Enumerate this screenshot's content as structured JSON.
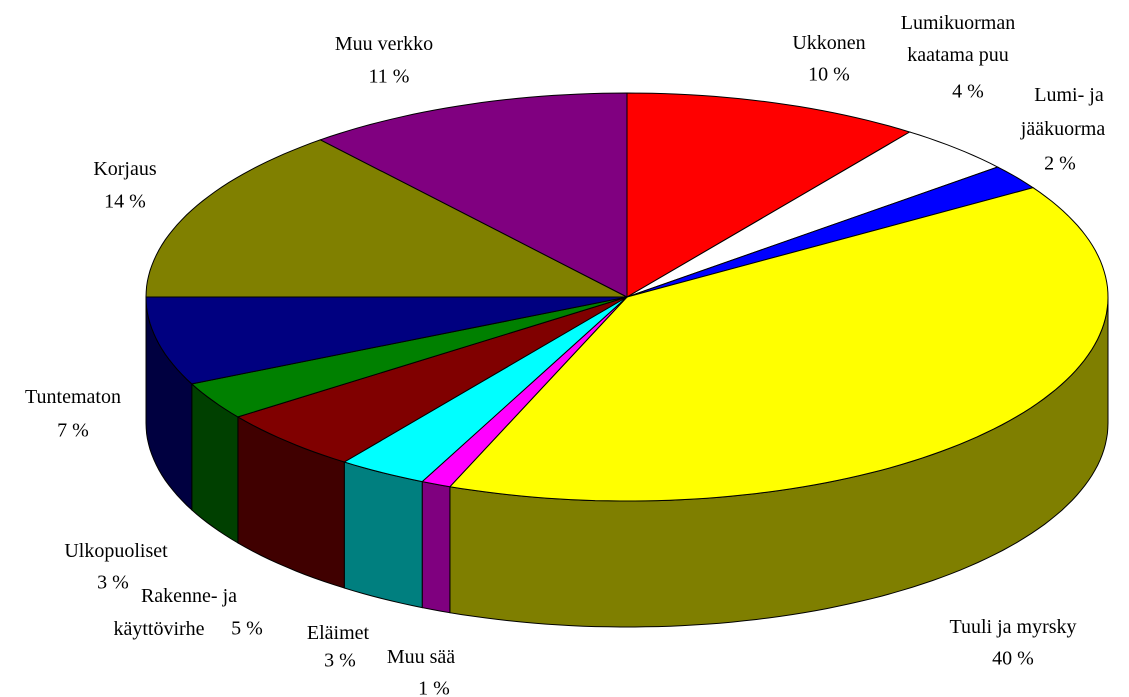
{
  "chart_data": {
    "type": "pie3d",
    "categories": [
      "Ukkonen",
      "Lumikuorman\nkaatama puu",
      "Lumi- ja\njääkuorma",
      "Tuuli ja myrsky",
      "Muu sää",
      "Eläimet",
      "Rakenne- ja\nkäyttövirhe",
      "Ulkopuoliset",
      "Tuntematon",
      "Korjaus",
      "Muu verkko"
    ],
    "values": [
      10,
      4,
      2,
      40,
      1,
      3,
      5,
      3,
      7,
      14,
      11
    ],
    "value_labels": [
      "10 %",
      "4 %",
      "2 %",
      "40 %",
      "1 %",
      "3 %",
      "5 %",
      "3 %",
      "7 %",
      "14 %",
      "11 %"
    ],
    "colors": [
      "#ff0000",
      "#ffffff",
      "#0000ff",
      "#ffff00",
      "#ff00ff",
      "#00ffff",
      "#800000",
      "#008000",
      "#000080",
      "#808000",
      "#800080"
    ]
  }
}
